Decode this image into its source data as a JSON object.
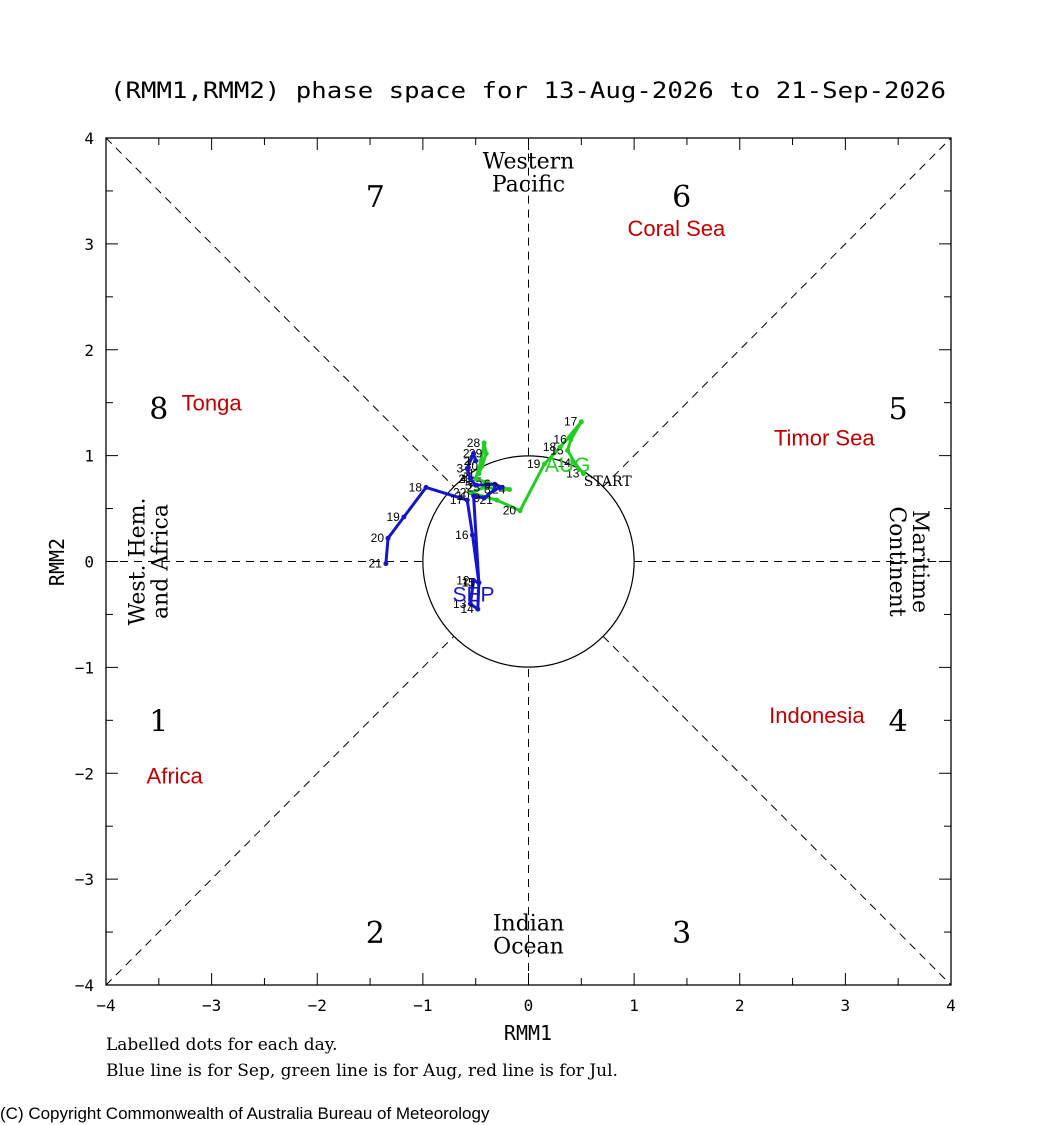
{
  "chart_data": {
    "type": "line",
    "title": "(RMM1,RMM2) phase space for 13-Aug-2026 to 21-Sep-2026",
    "xlabel": "RMM1",
    "ylabel": "RMM2",
    "xlim": [
      -4,
      4
    ],
    "ylim": [
      -4,
      4
    ],
    "x_ticks": [
      -4,
      -3,
      -2,
      -1,
      0,
      1,
      2,
      3,
      4
    ],
    "y_ticks": [
      -4,
      -3,
      -2,
      -1,
      0,
      1,
      2,
      3,
      4
    ],
    "x_tick_labels": [
      "−4",
      "−3",
      "−2",
      "−1",
      "0",
      "1",
      "2",
      "3",
      "4"
    ],
    "y_tick_labels": [
      "−4",
      "−3",
      "−2",
      "−1",
      "0",
      "1",
      "2",
      "3",
      "4"
    ],
    "grid": false,
    "unit_circle_radius": 1,
    "phases": [
      {
        "label": "1",
        "x": -3.5,
        "y": -1.5
      },
      {
        "label": "2",
        "x": -1.45,
        "y": -3.5
      },
      {
        "label": "3",
        "x": 1.45,
        "y": -3.5
      },
      {
        "label": "4",
        "x": 3.5,
        "y": -1.5
      },
      {
        "label": "5",
        "x": 3.5,
        "y": 1.45
      },
      {
        "label": "6",
        "x": 1.45,
        "y": 3.45
      },
      {
        "label": "7",
        "x": -1.45,
        "y": 3.45
      },
      {
        "label": "8",
        "x": -3.5,
        "y": 1.45
      }
    ],
    "region_labels": [
      {
        "lines": [
          "Western",
          "Pacific"
        ],
        "x": 0,
        "y": 3.6,
        "orient": "horizontal"
      },
      {
        "lines": [
          "Indian",
          "Ocean"
        ],
        "x": 0,
        "y": -3.6,
        "orient": "horizontal"
      },
      {
        "lines": [
          "West. Hem.",
          "and Africa"
        ],
        "x": -3.6,
        "y": 0,
        "orient": "vertical-left"
      },
      {
        "lines": [
          "Maritime",
          "Continent"
        ],
        "x": 3.6,
        "y": 0,
        "orient": "vertical-right"
      }
    ],
    "place_labels": [
      {
        "text": "Coral Sea",
        "x": 1.4,
        "y": 3.15
      },
      {
        "text": "Tonga",
        "x": -3.0,
        "y": 1.5
      },
      {
        "text": "Timor Sea",
        "x": 2.8,
        "y": 1.17
      },
      {
        "text": "Indonesia",
        "x": 2.73,
        "y": -1.45
      },
      {
        "text": "Africa",
        "x": -3.35,
        "y": -2.02
      }
    ],
    "month_labels": [
      {
        "text": "AUG",
        "x": 0.37,
        "y": 0.92,
        "color": "#22cc22"
      },
      {
        "text": "SEP",
        "x": -0.52,
        "y": -0.3,
        "color": "#1515cc"
      }
    ],
    "start_label": {
      "text": "START",
      "x": 0.75,
      "y": 0.76
    },
    "series": [
      {
        "name": "Aug",
        "color": "#22cc22",
        "points": [
          {
            "d": "13",
            "x": 0.52,
            "y": 0.83
          },
          {
            "d": "14",
            "x": 0.44,
            "y": 0.93
          },
          {
            "d": "15",
            "x": 0.37,
            "y": 1.05
          },
          {
            "d": "16",
            "x": 0.4,
            "y": 1.15
          },
          {
            "d": "17",
            "x": 0.5,
            "y": 1.32
          },
          {
            "d": "18",
            "x": 0.3,
            "y": 1.08
          },
          {
            "d": "19",
            "x": 0.15,
            "y": 0.92
          },
          {
            "d": "20",
            "x": -0.08,
            "y": 0.48
          },
          {
            "d": "21",
            "x": -0.3,
            "y": 0.58
          },
          {
            "d": "22",
            "x": -0.55,
            "y": 0.65
          },
          {
            "d": "23",
            "x": -0.42,
            "y": 0.7
          },
          {
            "d": "24",
            "x": -0.18,
            "y": 0.68
          },
          {
            "d": "25",
            "x": -0.4,
            "y": 0.75
          },
          {
            "d": "26",
            "x": -0.5,
            "y": 0.78
          },
          {
            "d": "27",
            "x": -0.45,
            "y": 0.95
          },
          {
            "d": "28",
            "x": -0.42,
            "y": 1.12
          },
          {
            "d": "29",
            "x": -0.4,
            "y": 1.02
          },
          {
            "d": "30",
            "x": -0.44,
            "y": 0.9
          },
          {
            "d": "31",
            "x": -0.47,
            "y": 0.83
          }
        ]
      },
      {
        "name": "Sep",
        "color": "#1515cc",
        "points": [
          {
            "d": "1",
            "x": -0.5,
            "y": 0.95
          },
          {
            "d": "2",
            "x": -0.52,
            "y": 1.02
          },
          {
            "d": "3",
            "x": -0.58,
            "y": 0.88
          },
          {
            "d": "4",
            "x": -0.55,
            "y": 0.78
          },
          {
            "d": "5",
            "x": -0.5,
            "y": 0.72
          },
          {
            "d": "6",
            "x": -0.32,
            "y": 0.73
          },
          {
            "d": "7",
            "x": -0.25,
            "y": 0.7
          },
          {
            "d": "8",
            "x": -0.32,
            "y": 0.68
          },
          {
            "d": "9",
            "x": -0.42,
            "y": 0.6
          },
          {
            "d": "10",
            "x": -0.52,
            "y": 0.62
          },
          {
            "d": "11",
            "x": -0.47,
            "y": -0.2
          },
          {
            "d": "12",
            "x": -0.52,
            "y": -0.18
          },
          {
            "d": "13",
            "x": -0.55,
            "y": -0.4
          },
          {
            "d": "14",
            "x": -0.48,
            "y": -0.45
          },
          {
            "d": "15",
            "x": -0.47,
            "y": -0.2
          },
          {
            "d": "16",
            "x": -0.53,
            "y": 0.25
          },
          {
            "d": "17",
            "x": -0.58,
            "y": 0.58
          },
          {
            "d": "18",
            "x": -0.97,
            "y": 0.7
          },
          {
            "d": "19",
            "x": -1.18,
            "y": 0.42
          },
          {
            "d": "20",
            "x": -1.33,
            "y": 0.22
          },
          {
            "d": "21",
            "x": -1.35,
            "y": -0.02
          }
        ]
      }
    ]
  },
  "footnotes": {
    "line1": "Labelled dots for each day.",
    "line2": "Blue line is for Sep, green line is for Aug, red line is for Jul."
  },
  "copyright": "(C) Copyright Commonwealth of Australia Bureau of Meteorology",
  "colors": {
    "place_label": "#c00000",
    "axis": "#000000",
    "aug": "#22cc22",
    "sep": "#1515cc"
  }
}
